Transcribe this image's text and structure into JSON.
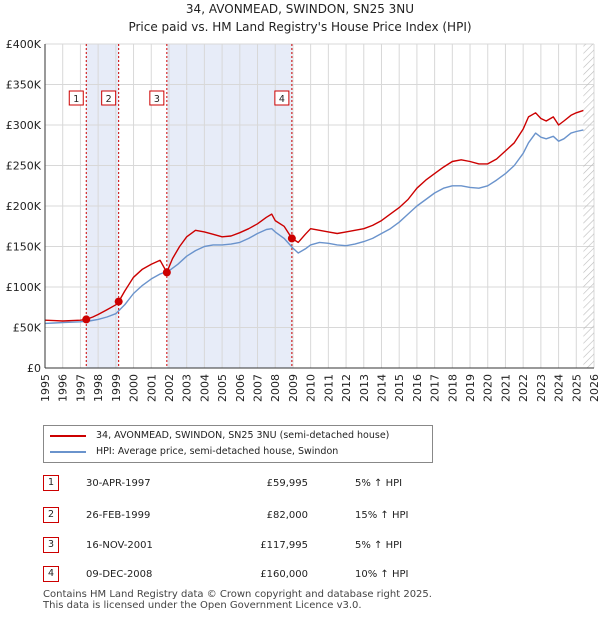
{
  "title_line1": "34, AVONMEAD, SWINDON, SN25 3NU",
  "title_line2": "Price paid vs. HM Land Registry's House Price Index (HPI)",
  "colors": {
    "property": "#cc0000",
    "hpi": "#6a93cc",
    "shade": "#e7ecf8",
    "grid": "#d8d8d8",
    "marker": "#cc0000"
  },
  "chart_data": {
    "type": "line",
    "title": "Price paid vs. HM Land Registry's House Price Index (HPI)",
    "xlim": [
      1995.0,
      2026.0
    ],
    "ylim": [
      0,
      400000
    ],
    "y_ticks": [
      0,
      50000,
      100000,
      150000,
      200000,
      250000,
      300000,
      350000,
      400000
    ],
    "y_tick_labels": [
      "£0",
      "£50K",
      "£100K",
      "£150K",
      "£200K",
      "£250K",
      "£300K",
      "£350K",
      "£400K"
    ],
    "x_ticks": [
      1995,
      1996,
      1997,
      1998,
      1999,
      2000,
      2001,
      2002,
      2003,
      2004,
      2005,
      2006,
      2007,
      2008,
      2009,
      2010,
      2011,
      2012,
      2013,
      2014,
      2015,
      2016,
      2017,
      2018,
      2019,
      2020,
      2021,
      2022,
      2023,
      2024,
      2025,
      2026
    ],
    "x_tick_labels": [
      "1995",
      "1996",
      "1997",
      "1998",
      "1999",
      "2000",
      "2001",
      "2002",
      "2003",
      "2004",
      "2005",
      "2006",
      "2007",
      "2008",
      "2009",
      "2010",
      "2011",
      "2012",
      "2013",
      "2014",
      "2015",
      "2016",
      "2017",
      "2018",
      "2019",
      "2020",
      "2021",
      "2022",
      "2023",
      "2024",
      "2025",
      "2026"
    ],
    "shaded_ranges": [
      [
        1997.33,
        1999.16
      ],
      [
        2001.88,
        2008.94
      ]
    ],
    "future_hatch_from": 2025.4,
    "series": [
      {
        "name": "34, AVONMEAD, SWINDON, SN25 3NU (semi-detached house)",
        "x": [
          1995,
          1995.5,
          1996,
          1996.5,
          1997,
          1997.33,
          1997.7,
          1998,
          1998.5,
          1999,
          1999.16,
          1999.5,
          2000,
          2000.5,
          2001,
          2001.5,
          2001.88,
          2002.2,
          2002.6,
          2003,
          2003.5,
          2004,
          2004.5,
          2005,
          2005.5,
          2006,
          2006.5,
          2007,
          2007.5,
          2007.8,
          2008,
          2008.5,
          2008.94,
          2009.3,
          2009.7,
          2010,
          2010.5,
          2011,
          2011.5,
          2012,
          2012.5,
          2013,
          2013.5,
          2014,
          2014.5,
          2015,
          2015.5,
          2016,
          2016.5,
          2017,
          2017.5,
          2018,
          2018.5,
          2019,
          2019.5,
          2020,
          2020.5,
          2021,
          2021.5,
          2022,
          2022.3,
          2022.7,
          2023,
          2023.3,
          2023.7,
          2024,
          2024.3,
          2024.7,
          2025,
          2025.4
        ],
        "values": [
          59000,
          58500,
          58000,
          58500,
          59000,
          59995,
          63000,
          66000,
          72000,
          78000,
          82000,
          95000,
          112000,
          122000,
          128000,
          133000,
          117995,
          135000,
          150000,
          162000,
          170000,
          168000,
          165000,
          162000,
          163000,
          167000,
          172000,
          178000,
          186000,
          190000,
          182000,
          175000,
          160000,
          155000,
          165000,
          172000,
          170000,
          168000,
          166000,
          168000,
          170000,
          172000,
          176000,
          182000,
          190000,
          198000,
          208000,
          222000,
          232000,
          240000,
          248000,
          255000,
          257000,
          255000,
          252000,
          252000,
          258000,
          268000,
          278000,
          295000,
          310000,
          315000,
          308000,
          305000,
          310000,
          300000,
          305000,
          312000,
          315000,
          318000
        ]
      },
      {
        "name": "HPI: Average price, semi-detached house, Swindon",
        "x": [
          1995,
          1995.5,
          1996,
          1996.5,
          1997,
          1997.5,
          1998,
          1998.5,
          1999,
          1999.5,
          2000,
          2000.5,
          2001,
          2001.5,
          2002,
          2002.5,
          2003,
          2003.5,
          2004,
          2004.5,
          2005,
          2005.5,
          2006,
          2006.5,
          2007,
          2007.5,
          2007.8,
          2008,
          2008.5,
          2009,
          2009.3,
          2009.7,
          2010,
          2010.5,
          2011,
          2011.5,
          2012,
          2012.5,
          2013,
          2013.5,
          2014,
          2014.5,
          2015,
          2015.5,
          2016,
          2016.5,
          2017,
          2017.5,
          2018,
          2018.5,
          2019,
          2019.5,
          2020,
          2020.5,
          2021,
          2021.5,
          2022,
          2022.3,
          2022.7,
          2023,
          2023.3,
          2023.7,
          2024,
          2024.3,
          2024.7,
          2025,
          2025.4
        ],
        "values": [
          55000,
          55500,
          56000,
          56500,
          57000,
          58000,
          60000,
          63000,
          67000,
          78000,
          92000,
          102000,
          110000,
          116000,
          120000,
          128000,
          138000,
          145000,
          150000,
          152000,
          152000,
          153000,
          155000,
          160000,
          166000,
          171000,
          172000,
          168000,
          160000,
          148000,
          142000,
          147000,
          152000,
          155000,
          154000,
          152000,
          151000,
          153000,
          156000,
          160000,
          166000,
          172000,
          180000,
          190000,
          200000,
          208000,
          216000,
          222000,
          225000,
          225000,
          223000,
          222000,
          225000,
          232000,
          240000,
          250000,
          265000,
          278000,
          290000,
          285000,
          283000,
          286000,
          280000,
          283000,
          290000,
          292000,
          294000
        ]
      }
    ],
    "sales": [
      {
        "id": "1",
        "x": 1997.33,
        "price": 59995
      },
      {
        "id": "2",
        "x": 1999.16,
        "price": 82000
      },
      {
        "id": "3",
        "x": 2001.88,
        "price": 117995
      },
      {
        "id": "4",
        "x": 2008.94,
        "price": 160000
      }
    ],
    "legend_placement": "below"
  },
  "legend": [
    {
      "label": "34, AVONMEAD, SWINDON, SN25 3NU (semi-detached house)"
    },
    {
      "label": "HPI: Average price, semi-detached house, Swindon"
    }
  ],
  "transactions": [
    {
      "num": "1",
      "date": "30-APR-1997",
      "price": "£59,995",
      "hpi": "5% ↑ HPI"
    },
    {
      "num": "2",
      "date": "26-FEB-1999",
      "price": "£82,000",
      "hpi": "15% ↑ HPI"
    },
    {
      "num": "3",
      "date": "16-NOV-2001",
      "price": "£117,995",
      "hpi": "5% ↑ HPI"
    },
    {
      "num": "4",
      "date": "09-DEC-2008",
      "price": "£160,000",
      "hpi": "10% ↑ HPI"
    }
  ],
  "footer_line1": "Contains HM Land Registry data © Crown copyright and database right 2025.",
  "footer_line2": "This data is licensed under the Open Government Licence v3.0."
}
